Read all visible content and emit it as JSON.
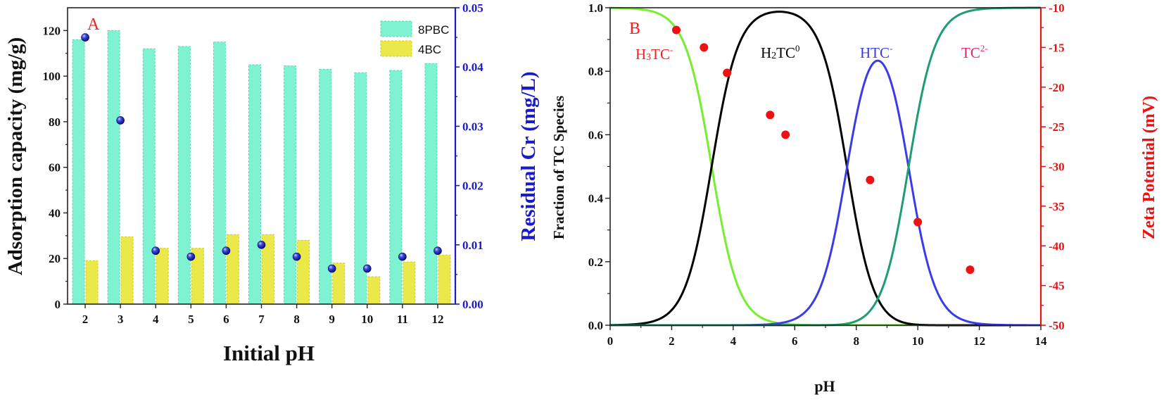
{
  "chart_data": [
    {
      "type": "bar",
      "panel_label": "A",
      "xlabel": "Initial pH",
      "ylabel": "Adsorption capacity (mg/g)",
      "y2label": "Residual Cr (mg/L)",
      "categories": [
        "2",
        "3",
        "4",
        "5",
        "6",
        "7",
        "8",
        "9",
        "10",
        "11",
        "12"
      ],
      "ylim": [
        0,
        130
      ],
      "y2lim": [
        0,
        0.05
      ],
      "yticks": [
        "0",
        "20",
        "40",
        "60",
        "80",
        "100",
        "120"
      ],
      "y2ticks": [
        "0.00",
        "0.01",
        "0.02",
        "0.03",
        "0.04",
        "0.05"
      ],
      "series": [
        {
          "name": "8PBC",
          "values": [
            116,
            120,
            112,
            113,
            115,
            105,
            104.5,
            103,
            101.5,
            102.5,
            105.5
          ],
          "color": "#7ff2d2"
        },
        {
          "name": "4BC",
          "values": [
            19,
            29.5,
            24.5,
            24.5,
            30.5,
            30.5,
            28,
            18,
            12,
            18.5,
            21.5
          ],
          "color": "#ebe84a"
        }
      ],
      "scatter": {
        "axis": "right",
        "values": [
          0.045,
          0.031,
          0.009,
          0.008,
          0.009,
          0.01,
          0.008,
          0.006,
          0.006,
          0.008,
          0.009
        ],
        "color": "#1a1acc"
      },
      "legend_position": "top-right",
      "grid": false
    },
    {
      "type": "line",
      "panel_label": "B",
      "xlabel": "pH",
      "ylabel": "Fraction of  TC Species",
      "y2label": "Zeta Potential (mV)",
      "xlim": [
        0,
        14
      ],
      "ylim": [
        0,
        1.0
      ],
      "y2lim": [
        -50,
        -10
      ],
      "xticks": [
        "0",
        "2",
        "4",
        "6",
        "8",
        "10",
        "12",
        "14"
      ],
      "yticks": [
        "0.0",
        "0.2",
        "0.4",
        "0.6",
        "0.8",
        "1.0"
      ],
      "y2ticks": [
        "-50",
        "-45",
        "-40",
        "-35",
        "-30",
        "-25",
        "-20",
        "-15",
        "-10"
      ],
      "pka": [
        3.3,
        7.7,
        9.7
      ],
      "series": [
        {
          "label_base": "H",
          "label_sub": "3",
          "label_rest": "TC",
          "label_sup": "-",
          "color": "#77ee2f",
          "label_color": "#ee2222"
        },
        {
          "label_base": "H",
          "label_sub": "2",
          "label_rest": "TC",
          "label_sup": "0",
          "color": "#000000",
          "label_color": "#000000"
        },
        {
          "label_base": "",
          "label_sub": "",
          "label_rest": "HTC",
          "label_sup": "-",
          "color": "#3b3be8",
          "label_color": "#3b3be8"
        },
        {
          "label_base": "",
          "label_sub": "",
          "label_rest": "TC",
          "label_sup": "2-",
          "color": "#1e9e6e",
          "label_color": "#ee2266"
        }
      ],
      "scatter": {
        "axis": "right",
        "color": "#ee1111",
        "x": [
          2.15,
          3.05,
          3.8,
          5.2,
          5.7,
          8.45,
          10.0,
          11.7
        ],
        "y": [
          -12.8,
          -15.0,
          -18.2,
          -23.5,
          -26.0,
          -31.7,
          -37.0,
          -43.0
        ]
      }
    }
  ]
}
